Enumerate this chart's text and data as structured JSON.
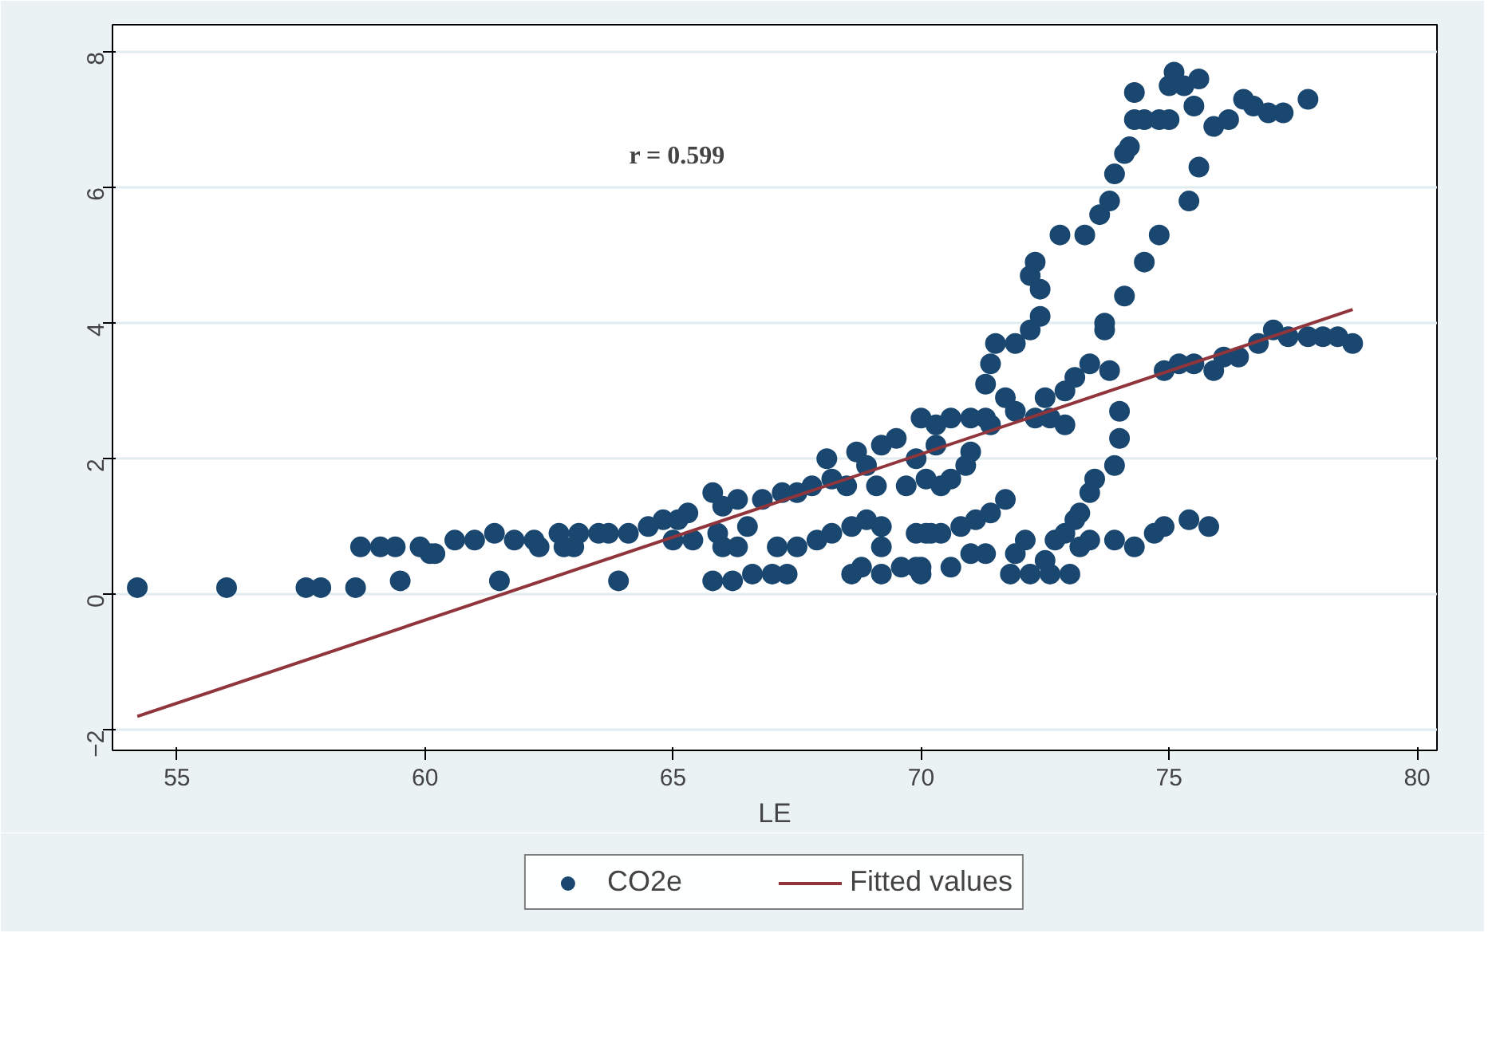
{
  "chart_data": {
    "type": "scatter",
    "xlabel": "LE",
    "annotations": [
      "r = 0.599"
    ],
    "xlim": [
      53.7,
      80.4
    ],
    "ylim": [
      -2.3,
      8.4
    ],
    "xticks": [
      55,
      60,
      65,
      70,
      75,
      80
    ],
    "yticks": [
      -2,
      0,
      2,
      4,
      6,
      8
    ],
    "grid": "y",
    "legend": "bottom",
    "marker": "circle",
    "series": [
      {
        "name": "CO2e",
        "color": "#1a476f",
        "x": [
          54.2,
          56.0,
          57.6,
          57.9,
          58.6,
          59.5,
          61.5,
          63.9,
          58.7,
          59.1,
          59.4,
          59.9,
          60.1,
          60.2,
          60.6,
          61.0,
          61.4,
          61.8,
          62.2,
          62.3,
          62.7,
          62.8,
          63.1,
          63.5,
          63.0,
          63.7,
          64.1,
          64.5,
          64.8,
          65.1,
          65.3,
          65.8,
          66.0,
          66.3,
          66.8,
          67.2,
          67.5,
          67.8,
          68.2,
          68.5,
          68.9,
          69.1,
          69.7,
          68.1,
          68.7,
          69.2,
          69.5,
          70.0,
          70.3,
          70.6,
          71.0,
          71.3,
          71.4,
          71.0,
          70.9,
          70.6,
          70.4,
          70.1,
          70.3,
          69.9,
          65.0,
          65.4,
          65.9,
          66.0,
          66.3,
          66.5,
          67.1,
          67.5,
          67.9,
          68.2,
          68.6,
          68.9,
          69.2,
          69.9,
          70.2,
          69.2,
          65.8,
          66.2,
          66.6,
          67.0,
          67.3,
          68.6,
          68.8,
          69.2,
          69.6,
          69.9,
          70.0,
          70.0,
          70.6,
          71.0,
          71.3,
          71.9,
          71.8,
          72.2,
          72.5,
          72.6,
          73.0,
          73.2,
          73.4,
          72.1,
          70.1,
          70.4,
          70.8,
          71.1,
          71.4,
          71.7,
          72.7,
          72.9,
          73.1,
          73.2,
          73.4,
          73.5,
          73.9,
          74.0,
          74.0,
          73.8,
          73.7,
          73.4,
          73.1,
          72.9,
          72.5,
          72.3,
          72.9,
          72.6,
          71.9,
          71.7,
          71.3,
          71.4,
          71.5,
          71.9,
          72.2,
          72.4,
          72.4,
          72.2,
          72.3,
          72.8,
          73.3,
          73.6,
          73.8,
          73.9,
          74.1,
          74.2,
          74.3,
          74.3,
          74.5,
          74.8,
          75.0,
          75.0,
          75.1,
          75.3,
          75.6,
          75.9,
          76.2,
          76.5,
          76.7,
          77.0,
          77.3,
          77.8,
          73.7,
          74.1,
          74.5,
          74.8,
          75.4,
          75.6,
          75.5,
          74.9,
          75.2,
          75.5,
          75.9,
          76.1,
          76.4,
          76.8,
          77.1,
          77.4,
          77.8,
          78.1,
          78.4,
          78.7,
          73.9,
          74.3,
          74.7,
          74.9,
          75.4,
          75.8
        ],
        "values": [
          0.1,
          0.1,
          0.1,
          0.1,
          0.1,
          0.2,
          0.2,
          0.2,
          0.7,
          0.7,
          0.7,
          0.7,
          0.6,
          0.6,
          0.8,
          0.8,
          0.9,
          0.8,
          0.8,
          0.7,
          0.9,
          0.7,
          0.9,
          0.9,
          0.7,
          0.9,
          0.9,
          1.0,
          1.1,
          1.1,
          1.2,
          1.5,
          1.3,
          1.4,
          1.4,
          1.5,
          1.5,
          1.6,
          1.7,
          1.6,
          1.9,
          1.6,
          1.6,
          2.0,
          2.1,
          2.2,
          2.3,
          2.6,
          2.5,
          2.6,
          2.6,
          2.6,
          2.5,
          2.1,
          1.9,
          1.7,
          1.6,
          1.7,
          2.2,
          2.0,
          0.8,
          0.8,
          0.9,
          0.7,
          0.7,
          1.0,
          0.7,
          0.7,
          0.8,
          0.9,
          1.0,
          1.1,
          1.0,
          0.9,
          0.9,
          0.7,
          0.2,
          0.2,
          0.3,
          0.3,
          0.3,
          0.3,
          0.4,
          0.3,
          0.4,
          0.4,
          0.3,
          0.4,
          0.4,
          0.6,
          0.6,
          0.6,
          0.3,
          0.3,
          0.5,
          0.3,
          0.3,
          0.7,
          0.8,
          0.8,
          0.9,
          0.9,
          1.0,
          1.1,
          1.2,
          1.4,
          0.8,
          0.9,
          1.1,
          1.2,
          1.5,
          1.7,
          1.9,
          2.3,
          2.7,
          3.3,
          3.9,
          3.4,
          3.2,
          3.0,
          2.9,
          2.6,
          2.5,
          2.6,
          2.7,
          2.9,
          3.1,
          3.4,
          3.7,
          3.7,
          3.9,
          4.1,
          4.5,
          4.7,
          4.9,
          5.3,
          5.3,
          5.6,
          5.8,
          6.2,
          6.5,
          6.6,
          7.4,
          7.0,
          7.0,
          7.0,
          7.0,
          7.5,
          7.7,
          7.5,
          7.6,
          6.9,
          7.0,
          7.3,
          7.2,
          7.1,
          7.1,
          7.3,
          4.0,
          4.4,
          4.9,
          5.3,
          5.8,
          6.3,
          7.2,
          3.3,
          3.4,
          3.4,
          3.3,
          3.5,
          3.5,
          3.7,
          3.9,
          3.8,
          3.8,
          3.8,
          3.8,
          3.7,
          0.8,
          0.7,
          0.9,
          1.0,
          1.1,
          1.0
        ]
      },
      {
        "name": "Fitted values",
        "type": "line",
        "marker": "none",
        "color": "#90353b",
        "x": [
          54.2,
          78.7
        ],
        "values": [
          -1.8,
          4.2
        ]
      }
    ]
  }
}
